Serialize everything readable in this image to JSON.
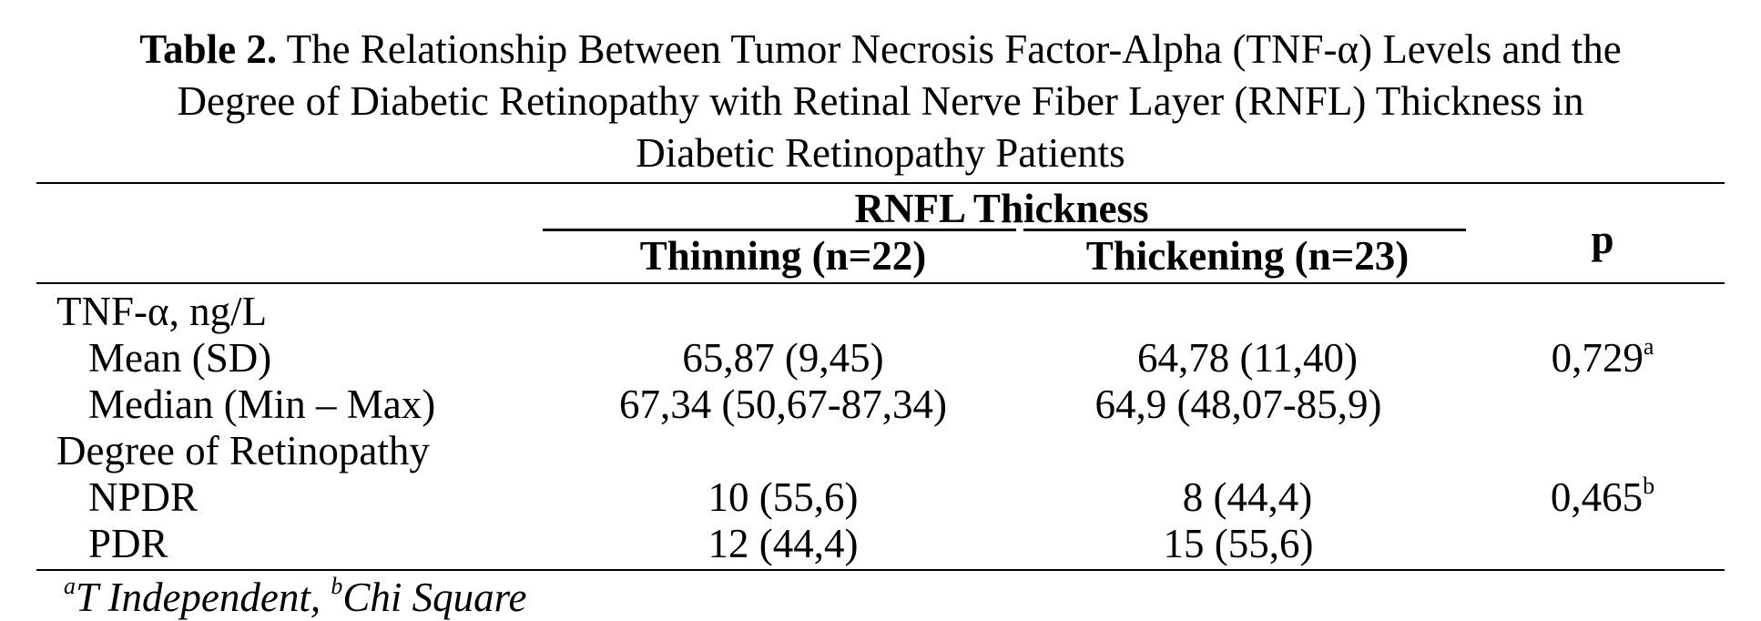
{
  "caption": {
    "label": "Table 2.",
    "line1": "The Relationship Between Tumor Necrosis Factor-Alpha (TNF-α) Levels and the",
    "line2": "Degree of Diabetic Retinopathy with Retinal Nerve Fiber Layer (RNFL) Thickness in",
    "line3": "Diabetic Retinopathy Patients"
  },
  "header": {
    "group": "RNFL Thickness",
    "col1": "Thinning (n=22)",
    "col2": "Thickening (n=23)",
    "p": "p"
  },
  "rows": [
    {
      "label": "TNF-α, ng/L",
      "thinning": "",
      "thickening": "",
      "p": "",
      "p_sup": ""
    },
    {
      "label": "Mean (SD)",
      "thinning": "65,87 (9,45)",
      "thickening": "64,78 (11,40)",
      "p": "0,729",
      "p_sup": "a"
    },
    {
      "label": "Median (Min – Max)",
      "thinning": "67,34 (50,67-87,34)",
      "thickening": "64,9 (48,07-85,9)",
      "p": "",
      "p_sup": ""
    },
    {
      "label": "Degree of Retinopathy",
      "thinning": "",
      "thickening": "",
      "p": "",
      "p_sup": ""
    },
    {
      "label": "NPDR",
      "thinning": "10 (55,6)",
      "thickening": "8 (44,4)",
      "p": "0,465",
      "p_sup": "b"
    },
    {
      "label": "PDR",
      "thinning": "12 (44,4)",
      "thickening": "15 (55,6)",
      "p": "",
      "p_sup": ""
    }
  ],
  "footnote": {
    "sup_a": "a",
    "text_a": "T Independent, ",
    "sup_b": "b",
    "text_b": "Chi Square"
  }
}
